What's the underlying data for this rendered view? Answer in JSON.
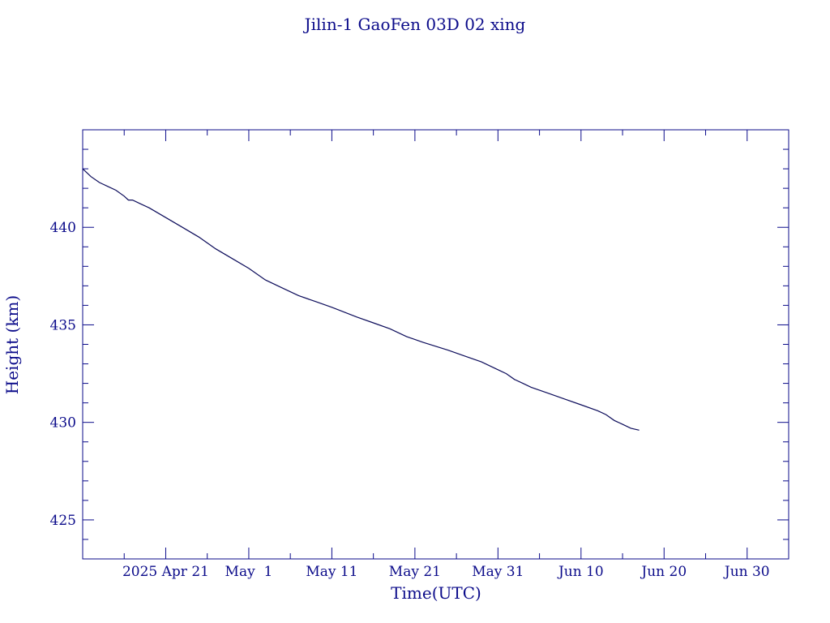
{
  "chart_data": {
    "type": "line",
    "title": "Jilin-1 GaoFen 03D 02 xing",
    "xlabel": "Time(UTC)",
    "ylabel": "Height (km)",
    "x_axis_type": "date",
    "xlim": [
      "2025-04-11",
      "2025-07-05"
    ],
    "ylim": [
      423,
      445
    ],
    "x_major_ticks": [
      {
        "date": "2025-04-21",
        "label": "2025 Apr 21"
      },
      {
        "date": "2025-05-01",
        "label": "May  1"
      },
      {
        "date": "2025-05-11",
        "label": "May 11"
      },
      {
        "date": "2025-05-21",
        "label": "May 21"
      },
      {
        "date": "2025-05-31",
        "label": "May 31"
      },
      {
        "date": "2025-06-10",
        "label": "Jun 10"
      },
      {
        "date": "2025-06-20",
        "label": "Jun 20"
      },
      {
        "date": "2025-06-30",
        "label": "Jun 30"
      }
    ],
    "x_minor_ticks": [
      "2025-04-16",
      "2025-04-26",
      "2025-05-06",
      "2025-05-16",
      "2025-05-26",
      "2025-06-05",
      "2025-06-15",
      "2025-06-25",
      "2025-07-05"
    ],
    "y_major_ticks": [
      425,
      430,
      435,
      440
    ],
    "y_minor_ticks": [
      424,
      426,
      427,
      428,
      429,
      431,
      432,
      433,
      434,
      436,
      437,
      438,
      439,
      441,
      442,
      443,
      444
    ],
    "series": [
      {
        "color": "#0b0b5a",
        "x": [
          "2025-04-11",
          "2025-04-12",
          "2025-04-13",
          "2025-04-14",
          "2025-04-15",
          "2025-04-16",
          "2025-04-16T12:00",
          "2025-04-17",
          "2025-04-18",
          "2025-04-19",
          "2025-04-21",
          "2025-04-23",
          "2025-04-25",
          "2025-04-27",
          "2025-04-29",
          "2025-05-01",
          "2025-05-03",
          "2025-05-05",
          "2025-05-07",
          "2025-05-09",
          "2025-05-11",
          "2025-05-14",
          "2025-05-16",
          "2025-05-18",
          "2025-05-20",
          "2025-05-22",
          "2025-05-25",
          "2025-05-27",
          "2025-05-29",
          "2025-05-31",
          "2025-06-01",
          "2025-06-02",
          "2025-06-03",
          "2025-06-04",
          "2025-06-06",
          "2025-06-08",
          "2025-06-10",
          "2025-06-12",
          "2025-06-13",
          "2025-06-14",
          "2025-06-15",
          "2025-06-16",
          "2025-06-17"
        ],
        "y": [
          443.0,
          442.6,
          442.3,
          442.1,
          441.9,
          441.6,
          441.4,
          441.4,
          441.2,
          441.0,
          440.5,
          440.0,
          439.5,
          438.9,
          438.4,
          437.9,
          437.3,
          436.9,
          436.5,
          436.2,
          435.9,
          435.4,
          435.1,
          434.8,
          434.4,
          434.1,
          433.7,
          433.4,
          433.1,
          432.7,
          432.5,
          432.2,
          432.0,
          431.8,
          431.5,
          431.2,
          430.9,
          430.6,
          430.4,
          430.1,
          429.9,
          429.7,
          429.6
        ]
      }
    ],
    "grid": false
  }
}
